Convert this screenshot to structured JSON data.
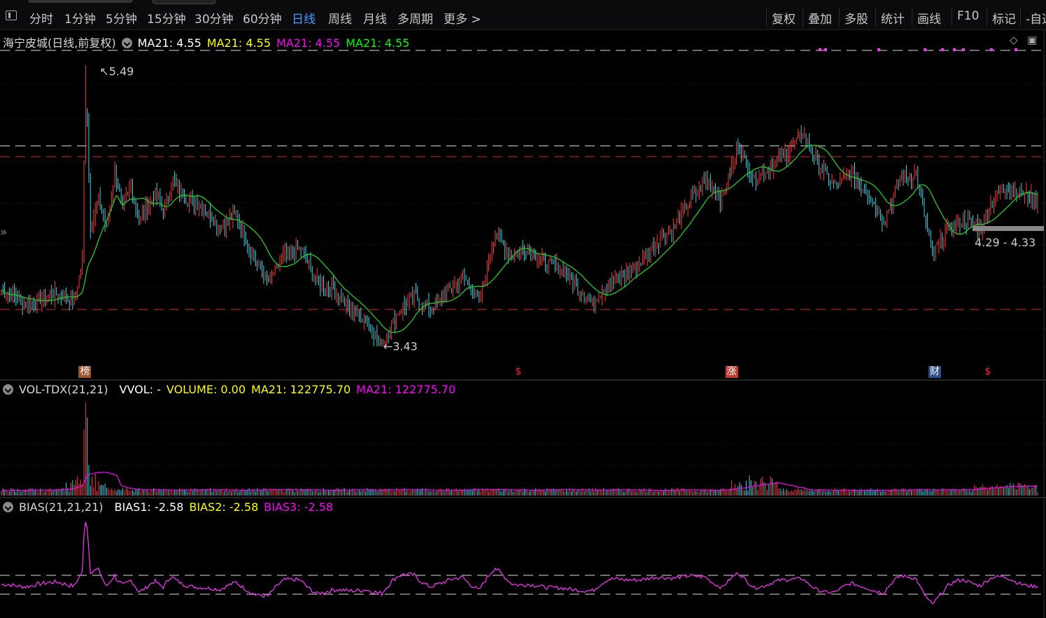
{
  "toolbar": {
    "items": [
      "分时",
      "1分钟",
      "5分钟",
      "15分钟",
      "30分钟",
      "60分钟",
      "日线",
      "周线",
      "月线",
      "多周期",
      "更多 >"
    ],
    "active_index": 6,
    "right_items": [
      "复权",
      "叠加",
      "多股",
      "统计",
      "画线",
      "F10",
      "标记",
      "-自选"
    ]
  },
  "main": {
    "stock_title": "海宁皮城(日线,前复权)",
    "ma_legend": [
      {
        "text": "MA21: 4.55",
        "color": "#ffffff"
      },
      {
        "text": "MA21: 4.55",
        "color": "#ffff00"
      },
      {
        "text": "MA21: 4.55",
        "color": "#ff00ff"
      },
      {
        "text": "MA21: 4.55",
        "color": "#00ff00"
      }
    ],
    "max_label": "5.49",
    "min_label": "3.43",
    "range_label": "4.29 - 4.33",
    "markers": [
      {
        "text": "榜",
        "color": "#ffffff",
        "bg": "#a0522d",
        "pos": 0.08
      },
      {
        "text": "$",
        "color": "#ff2020",
        "bg": "",
        "pos": 0.5
      },
      {
        "text": "涨",
        "color": "#ffffff",
        "bg": "#c0392b",
        "pos": 0.704
      },
      {
        "text": "财",
        "color": "#ffffff",
        "bg": "#2c4f8c",
        "pos": 0.9
      },
      {
        "text": "$",
        "color": "#ff2020",
        "bg": "",
        "pos": 0.953
      }
    ]
  },
  "vol_panel": {
    "title": "VOL-TDX(21,21)",
    "items": [
      {
        "text": "VVOL: -",
        "color": "#ffffff"
      },
      {
        "text": "VOLUME: 0.00",
        "color": "#ffff00"
      },
      {
        "text": "MA21: 122775.70",
        "color": "#ffff00"
      },
      {
        "text": "MA21: 122775.70",
        "color": "#ff00ff"
      }
    ]
  },
  "bias_panel": {
    "title": "BIAS(21,21,21)",
    "items": [
      {
        "text": "BIAS1: -2.58",
        "color": "#ffffff"
      },
      {
        "text": "BIAS2: -2.58",
        "color": "#ffff00"
      },
      {
        "text": "BIAS3: -2.58",
        "color": "#ff00ff"
      }
    ]
  },
  "colors": {
    "up": "#ff3b3b",
    "down": "#3ad7e8",
    "ma": "#22cc22",
    "vol_ma": "#ff00ff",
    "bias": "#ff33ff",
    "ref_red": "#e02020",
    "ref_white": "#dddddd"
  },
  "chart_data": {
    "type": "candlestick",
    "price_range": [
      3.3,
      5.6
    ],
    "ref_lines_red": [
      4.82,
      3.7
    ],
    "ref_lines_white": [
      4.9
    ],
    "max_price": 5.49,
    "min_price": 3.43,
    "ma_period": 21,
    "closes_keypoints": [
      [
        0,
        3.84
      ],
      [
        15,
        3.74
      ],
      [
        25,
        3.78
      ],
      [
        35,
        3.82
      ],
      [
        45,
        3.76
      ],
      [
        50,
        4.05
      ],
      [
        52,
        5.49
      ],
      [
        55,
        4.3
      ],
      [
        60,
        4.5
      ],
      [
        65,
        4.3
      ],
      [
        70,
        4.7
      ],
      [
        75,
        4.45
      ],
      [
        80,
        4.6
      ],
      [
        85,
        4.35
      ],
      [
        95,
        4.55
      ],
      [
        100,
        4.4
      ],
      [
        105,
        4.65
      ],
      [
        115,
        4.5
      ],
      [
        125,
        4.45
      ],
      [
        135,
        4.3
      ],
      [
        145,
        4.4
      ],
      [
        155,
        4.1
      ],
      [
        165,
        3.9
      ],
      [
        175,
        4.1
      ],
      [
        185,
        4.15
      ],
      [
        195,
        3.9
      ],
      [
        205,
        3.85
      ],
      [
        215,
        3.7
      ],
      [
        225,
        3.62
      ],
      [
        235,
        3.43
      ],
      [
        245,
        3.68
      ],
      [
        255,
        3.8
      ],
      [
        265,
        3.7
      ],
      [
        275,
        3.82
      ],
      [
        285,
        3.95
      ],
      [
        295,
        3.76
      ],
      [
        305,
        4.25
      ],
      [
        315,
        4.1
      ],
      [
        325,
        4.15
      ],
      [
        335,
        4.05
      ],
      [
        345,
        4.0
      ],
      [
        355,
        3.88
      ],
      [
        365,
        3.75
      ],
      [
        375,
        3.9
      ],
      [
        385,
        3.95
      ],
      [
        395,
        4.05
      ],
      [
        405,
        4.2
      ],
      [
        415,
        4.3
      ],
      [
        425,
        4.5
      ],
      [
        435,
        4.65
      ],
      [
        445,
        4.5
      ],
      [
        455,
        4.9
      ],
      [
        465,
        4.65
      ],
      [
        475,
        4.75
      ],
      [
        485,
        4.85
      ],
      [
        495,
        5.0
      ],
      [
        505,
        4.75
      ],
      [
        515,
        4.6
      ],
      [
        525,
        4.7
      ],
      [
        535,
        4.55
      ],
      [
        545,
        4.35
      ],
      [
        555,
        4.65
      ],
      [
        565,
        4.7
      ],
      [
        575,
        4.1
      ],
      [
        585,
        4.3
      ],
      [
        595,
        4.35
      ],
      [
        605,
        4.3
      ],
      [
        612,
        4.5
      ],
      [
        620,
        4.6
      ],
      [
        630,
        4.55
      ],
      [
        640,
        4.5
      ]
    ],
    "volume_peak_index": 52
  }
}
